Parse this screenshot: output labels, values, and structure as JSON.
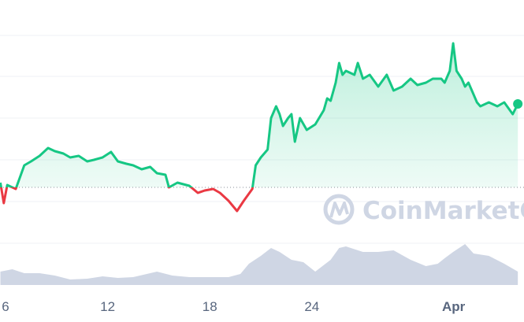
{
  "chart_data": {
    "type": "line",
    "title": "",
    "xlabel": "",
    "ylabel": "",
    "x_tick_labels": [
      {
        "x": 6,
        "label": "6"
      },
      {
        "x": 12,
        "label": "12"
      },
      {
        "x": 18,
        "label": "18"
      },
      {
        "x": 24,
        "label": "24"
      },
      {
        "x": 32,
        "label": "Apr"
      }
    ],
    "grid": true,
    "colors": {
      "up": "#16c784",
      "down": "#ea3943",
      "volume": "#cfd6e4",
      "baseline": "#8a8f99",
      "grid": "#eff2f5"
    },
    "baseline_value": 162,
    "series": [
      {
        "kind": "price",
        "x": [
          5.7,
          5.9,
          6.1,
          6.6,
          7.1,
          7.5,
          8.0,
          8.5,
          8.9,
          9.4,
          9.8,
          10.3,
          10.8,
          11.2,
          11.7,
          12.2,
          12.6,
          13.1,
          13.5,
          14.0,
          14.5,
          14.9,
          15.4,
          15.6,
          16.1,
          16.8,
          17.3,
          17.7,
          18.2,
          18.6,
          19.1,
          19.6,
          20.0,
          20.5,
          20.7,
          21.0,
          21.4,
          21.6,
          21.9,
          22.1,
          22.3,
          22.6,
          22.8,
          23.0,
          23.3,
          23.7,
          24.2,
          24.7,
          24.9,
          25.1,
          25.4,
          25.6,
          25.8,
          26.0,
          26.5,
          26.7,
          27.0,
          27.4,
          27.9,
          28.4,
          28.8,
          29.3,
          29.8,
          30.2,
          30.7,
          31.1,
          31.6,
          31.8,
          32.1,
          32.3,
          32.5,
          32.8,
          33.0,
          33.2,
          33.5,
          33.7,
          33.9,
          34.4,
          34.9,
          35.3,
          35.8,
          36.1
        ],
        "values": [
          168,
          142,
          165,
          160,
          190,
          195,
          202,
          212,
          208,
          205,
          200,
          202,
          195,
          197,
          200,
          207,
          195,
          192,
          190,
          185,
          188,
          180,
          178,
          162,
          168,
          164,
          155,
          158,
          160,
          155,
          145,
          132,
          145,
          160,
          190,
          200,
          210,
          250,
          265,
          255,
          240,
          250,
          255,
          220,
          250,
          235,
          242,
          260,
          275,
          272,
          295,
          320,
          305,
          310,
          305,
          320,
          300,
          305,
          290,
          305,
          285,
          290,
          300,
          292,
          295,
          300,
          300,
          295,
          310,
          345,
          310,
          300,
          290,
          295,
          280,
          270,
          265,
          270,
          265,
          270,
          255,
          268
        ]
      },
      {
        "kind": "volume",
        "x": [
          5.7,
          6.4,
          7.1,
          8.0,
          8.9,
          9.8,
          10.8,
          11.7,
          12.6,
          13.5,
          14.9,
          15.8,
          16.8,
          17.7,
          19.1,
          19.8,
          20.3,
          21.0,
          21.6,
          22.1,
          22.8,
          23.5,
          24.2,
          25.1,
          25.6,
          26.0,
          27.0,
          27.9,
          28.8,
          29.8,
          30.7,
          31.4,
          31.8,
          32.3,
          33.0,
          33.5,
          34.4,
          35.3,
          36.1
        ],
        "values": [
          17,
          20,
          15,
          15,
          12,
          7,
          8,
          11,
          9,
          10,
          17,
          12,
          10,
          10,
          10,
          14,
          27,
          37,
          47,
          42,
          32,
          29,
          17,
          32,
          47,
          49,
          42,
          42,
          44,
          32,
          24,
          27,
          34,
          42,
          52,
          40,
          37,
          27,
          17
        ]
      }
    ],
    "watermark": "CoinMarketCap"
  }
}
